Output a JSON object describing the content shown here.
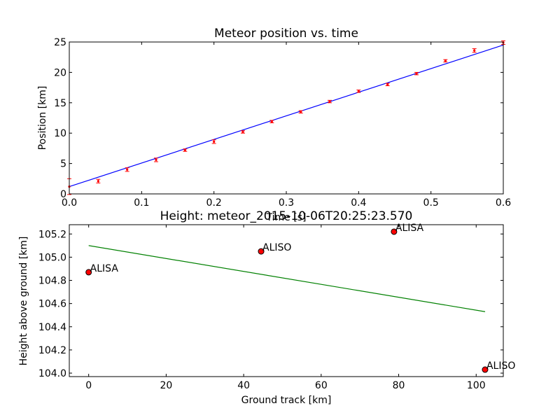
{
  "chart_data": [
    {
      "type": "scatter",
      "title": "Meteor position vs. time",
      "xlabel": "Time [s]",
      "ylabel": "Position [km]",
      "xlim": [
        0.0,
        0.6
      ],
      "ylim": [
        0,
        25
      ],
      "xticks": [
        "0.0",
        "0.1",
        "0.2",
        "0.3",
        "0.4",
        "0.5",
        "0.6"
      ],
      "yticks": [
        "0",
        "5",
        "10",
        "15",
        "20",
        "25"
      ],
      "grid": false,
      "series": [
        {
          "kind": "errorbar-points",
          "color": "#ff0000",
          "x": [
            0.0,
            0.04,
            0.08,
            0.12,
            0.16,
            0.2,
            0.24,
            0.28,
            0.32,
            0.36,
            0.4,
            0.44,
            0.48,
            0.52,
            0.56,
            0.6
          ],
          "y": [
            1.2,
            2.1,
            4.0,
            5.6,
            7.2,
            8.6,
            10.2,
            11.9,
            13.5,
            15.2,
            16.9,
            18.0,
            19.8,
            21.9,
            23.6,
            24.9
          ],
          "yerr": [
            1.3,
            0.3,
            0.3,
            0.3,
            0.2,
            0.3,
            0.2,
            0.2,
            0.2,
            0.2,
            0.2,
            0.2,
            0.2,
            0.2,
            0.3,
            0.3
          ]
        },
        {
          "kind": "fit-line",
          "color": "#0000ff",
          "x": [
            0.0,
            0.6
          ],
          "y": [
            1.2,
            24.5
          ]
        }
      ]
    },
    {
      "type": "scatter",
      "title": "Height: meteor_2015-10-06T20:25:23.570",
      "xlabel": "Ground track [km]",
      "ylabel": "Height above ground [km]",
      "xlim": [
        -5,
        107
      ],
      "ylim": [
        103.97,
        105.28
      ],
      "xticks": [
        "0",
        "20",
        "40",
        "60",
        "80",
        "100"
      ],
      "xtick_values": [
        0,
        20,
        40,
        60,
        80,
        100
      ],
      "yticks": [
        "104.0",
        "104.2",
        "104.4",
        "104.6",
        "104.8",
        "105.0",
        "105.2"
      ],
      "ytick_values": [
        104.0,
        104.2,
        104.4,
        104.6,
        104.8,
        105.0,
        105.2
      ],
      "grid": false,
      "series": [
        {
          "kind": "points",
          "color": "#ff0000",
          "x": [
            0,
            44.5,
            78.8,
            102.3
          ],
          "y": [
            104.87,
            105.05,
            105.22,
            104.03
          ],
          "labels": [
            "ALISA",
            "ALISO",
            "ALISA",
            "ALISO"
          ]
        },
        {
          "kind": "fit-line",
          "color": "#008000",
          "x": [
            0,
            102.3
          ],
          "y": [
            105.1,
            104.53
          ]
        }
      ]
    }
  ]
}
